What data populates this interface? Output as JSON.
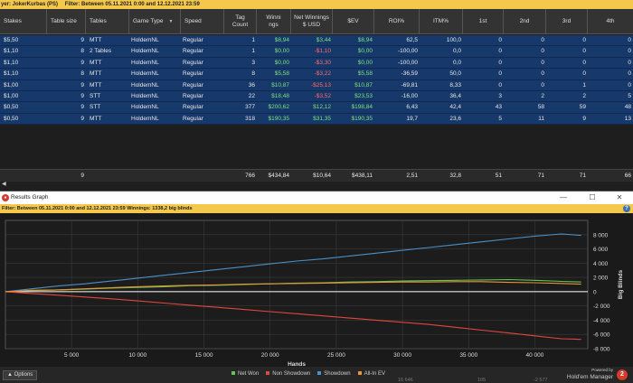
{
  "filterbar": {
    "player": "yer: JokerKurbas (PS)",
    "filter": "Filter: Between 05.11.2021 0:00 and 12.12.2021 23:59"
  },
  "table": {
    "headers": [
      "Stakes",
      "Table size",
      "Tables",
      "Game Type",
      "Speed",
      "Tag Count",
      "Winni ngs",
      "Net Winnings $ USD",
      "$EV",
      "ROI%",
      "ITM%",
      "1st",
      "2nd",
      "3rd",
      "4th"
    ],
    "rows": [
      [
        "$5,50",
        "9",
        "MTT",
        "HoldemNL",
        "Regular",
        "1",
        "$8,94",
        "$3,44",
        "$8,94",
        "62,5",
        "100,0",
        "0",
        "0",
        "0",
        "0"
      ],
      [
        "$1,10",
        "8",
        "2 Tables",
        "HoldemNL",
        "Regular",
        "1",
        "$0,00",
        "-$1,10",
        "$0,00",
        "-100,00",
        "0,0",
        "0",
        "0",
        "0",
        "0"
      ],
      [
        "$1,10",
        "9",
        "MTT",
        "HoldemNL",
        "Regular",
        "3",
        "$0,00",
        "-$3,30",
        "$0,00",
        "-100,00",
        "0,0",
        "0",
        "0",
        "0",
        "0"
      ],
      [
        "$1,10",
        "8",
        "MTT",
        "HoldemNL",
        "Regular",
        "8",
        "$5,58",
        "-$3,22",
        "$5,58",
        "-36,59",
        "50,0",
        "0",
        "0",
        "0",
        "0"
      ],
      [
        "$1,00",
        "9",
        "MTT",
        "HoldemNL",
        "Regular",
        "36",
        "$10,87",
        "-$25,13",
        "$10,87",
        "-69,81",
        "8,33",
        "0",
        "0",
        "1",
        "0"
      ],
      [
        "$1,00",
        "9",
        "STT",
        "HoldemNL",
        "Regular",
        "22",
        "$18,48",
        "-$3,52",
        "$23,53",
        "-16,00",
        "36,4",
        "3",
        "2",
        "2",
        "5"
      ],
      [
        "$0,50",
        "9",
        "STT",
        "HoldemNL",
        "Regular",
        "377",
        "$200,62",
        "$12,12",
        "$198,84",
        "6,43",
        "42,4",
        "43",
        "58",
        "59",
        "48"
      ],
      [
        "$0,50",
        "9",
        "MTT",
        "HoldemNL",
        "Regular",
        "318",
        "$190,35",
        "$31,35",
        "$190,35",
        "19,7",
        "23,6",
        "5",
        "11",
        "9",
        "13"
      ]
    ],
    "totals": [
      "",
      "9",
      "",
      "",
      "",
      "766",
      "$434,84",
      "$10,64",
      "$438,11",
      "2,51",
      "32,8",
      "51",
      "71",
      "71",
      "66"
    ]
  },
  "graph": {
    "window_title": "Results Graph",
    "filter": "Filter: Between 05.11.2021 0:00 and 12.12.2021 23:59  Winnings: 1338,2 big blinds",
    "options_label": "Options",
    "powered_by": "Powered by",
    "brand": "Hold'em Manager",
    "logo_text": "2",
    "partial_bottom": [
      "16 646",
      "105",
      "-2 577"
    ]
  },
  "chart_data": {
    "type": "line",
    "xlabel": "Hands",
    "ylabel": "Big Blinds",
    "xlim": [
      0,
      44000
    ],
    "ylim": [
      -8000,
      10000
    ],
    "x_ticks": [
      5000,
      10000,
      15000,
      20000,
      25000,
      30000,
      35000,
      40000
    ],
    "x_tick_labels": [
      "5 000",
      "10 000",
      "15 000",
      "20 000",
      "25 000",
      "30 000",
      "35 000",
      "40 000"
    ],
    "y_ticks": [
      8000,
      6000,
      4000,
      2000,
      0,
      -2000,
      -4000,
      -6000,
      -8000
    ],
    "y_tick_labels": [
      "8 000",
      "6 000",
      "4 000",
      "2 000",
      "0",
      "-2 000",
      "-4 000",
      "-6 000",
      "-8 000"
    ],
    "grid": true,
    "legend_position": "bottom",
    "series": [
      {
        "name": "Net Won",
        "color": "#5ec84f",
        "x": [
          0,
          2000,
          4000,
          6000,
          8000,
          10000,
          12000,
          14000,
          16000,
          18000,
          20000,
          22000,
          24000,
          26000,
          28000,
          30000,
          32000,
          34000,
          36000,
          38000,
          40000,
          42000,
          43500
        ],
        "values": [
          0,
          200,
          250,
          350,
          500,
          600,
          700,
          850,
          900,
          1000,
          1100,
          1200,
          1250,
          1350,
          1400,
          1500,
          1550,
          1600,
          1650,
          1700,
          1600,
          1450,
          1350
        ]
      },
      {
        "name": "Non Showdown",
        "color": "#e0473f",
        "x": [
          0,
          2000,
          4000,
          6000,
          8000,
          10000,
          12000,
          14000,
          16000,
          18000,
          20000,
          22000,
          24000,
          26000,
          28000,
          30000,
          32000,
          34000,
          36000,
          38000,
          40000,
          42000,
          43500
        ],
        "values": [
          0,
          -250,
          -500,
          -750,
          -1000,
          -1300,
          -1600,
          -1900,
          -2200,
          -2500,
          -2800,
          -3100,
          -3400,
          -3700,
          -4000,
          -4300,
          -4600,
          -5000,
          -5400,
          -5800,
          -6200,
          -6600,
          -6700
        ]
      },
      {
        "name": "Showdown",
        "color": "#4a90c8",
        "x": [
          0,
          2000,
          4000,
          6000,
          8000,
          10000,
          12000,
          14000,
          16000,
          18000,
          20000,
          22000,
          24000,
          26000,
          28000,
          30000,
          32000,
          34000,
          36000,
          38000,
          40000,
          42000,
          43500
        ],
        "values": [
          0,
          400,
          800,
          1100,
          1500,
          1900,
          2300,
          2700,
          3100,
          3500,
          3900,
          4300,
          4600,
          5000,
          5400,
          5800,
          6200,
          6600,
          7000,
          7400,
          7800,
          8100,
          7900
        ]
      },
      {
        "name": "All-In EV",
        "color": "#e8943a",
        "x": [
          0,
          2000,
          4000,
          6000,
          8000,
          10000,
          12000,
          14000,
          16000,
          18000,
          20000,
          22000,
          24000,
          26000,
          28000,
          30000,
          32000,
          34000,
          36000,
          38000,
          40000,
          42000,
          43500
        ],
        "values": [
          0,
          150,
          250,
          400,
          550,
          700,
          800,
          900,
          950,
          1050,
          1100,
          1150,
          1200,
          1250,
          1300,
          1350,
          1350,
          1400,
          1400,
          1300,
          1250,
          1150,
          1050
        ]
      }
    ]
  }
}
